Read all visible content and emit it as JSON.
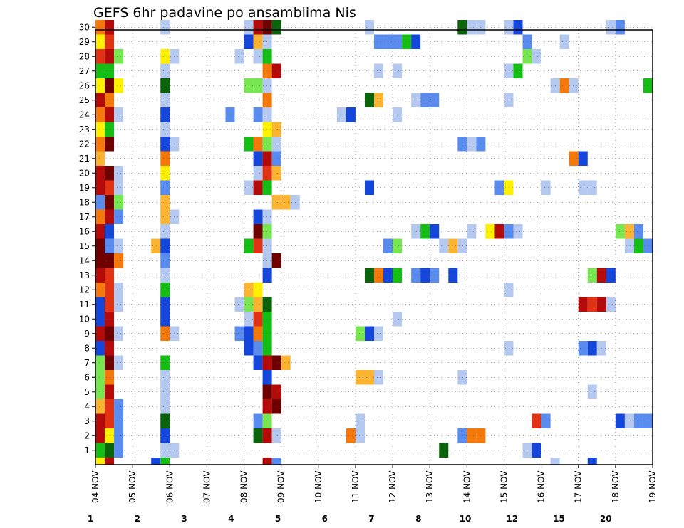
{
  "chart_data": {
    "type": "heatmap",
    "title": "GEFS 6hr padavine po ansamblima Nis",
    "xlabel": "",
    "ylabel": "",
    "x_tick_labels": [
      "04 NOV",
      "05 NOV",
      "06 NOV",
      "07 NOV",
      "08 NOV",
      "09 NOV",
      "10 NOV",
      "11 NOV",
      "12 NOV",
      "13 NOV",
      "14 NOV",
      "15 NOV",
      "16 NOV",
      "17 NOV",
      "18 NOV",
      "19 NOV"
    ],
    "members": [
      "1",
      "2",
      "3",
      "4",
      "5",
      "6",
      "7",
      "8",
      "9",
      "10",
      "11",
      "12",
      "13",
      "14",
      "15",
      "16",
      "17",
      "18",
      "19",
      "20",
      "21",
      "22",
      "23",
      "24",
      "25",
      "26",
      "27",
      "28",
      "29",
      "30"
    ],
    "x_unit": "6-hour step from 04 NOV 00Z",
    "steps_per_day": 4,
    "n_steps": 60,
    "grid": true,
    "legend_placement": "bottom",
    "legend_labels": [
      "1",
      "2",
      "3",
      "4",
      "5",
      "6",
      "7",
      "8",
      "10",
      "12",
      "15",
      "20"
    ],
    "legend_colors": [
      "#b4c8f0",
      "#5a8cf0",
      "#1446dc",
      "#78e650",
      "#14be14",
      "#0a640a",
      "#fff000",
      "#fab432",
      "#f5780a",
      "#e13214",
      "#b40a0a",
      "#6e0000"
    ],
    "member_rows": [
      {
        "member": "1",
        "cells": [
          [
            0,
            5
          ],
          [
            1,
            6
          ],
          [
            2,
            2
          ],
          [
            7,
            1
          ],
          [
            8,
            1
          ],
          [
            37,
            6
          ],
          [
            46,
            1
          ],
          [
            47,
            3
          ]
        ]
      },
      {
        "member": "2",
        "cells": [
          [
            0,
            11
          ],
          [
            1,
            7
          ],
          [
            2,
            2
          ],
          [
            7,
            3
          ],
          [
            17,
            6
          ],
          [
            18,
            11
          ],
          [
            19,
            1
          ],
          [
            27,
            9
          ],
          [
            28,
            1
          ],
          [
            39,
            2
          ],
          [
            40,
            9
          ],
          [
            41,
            9
          ]
        ]
      },
      {
        "member": "3",
        "cells": [
          [
            0,
            11
          ],
          [
            1,
            10
          ],
          [
            2,
            2
          ],
          [
            7,
            6
          ],
          [
            17,
            2
          ],
          [
            18,
            4
          ],
          [
            28,
            1
          ],
          [
            47,
            10
          ],
          [
            48,
            2
          ],
          [
            56,
            3
          ],
          [
            57,
            1
          ],
          [
            58,
            2
          ],
          [
            59,
            2
          ]
        ]
      },
      {
        "member": "4",
        "cells": [
          [
            0,
            8
          ],
          [
            1,
            10
          ],
          [
            2,
            2
          ],
          [
            7,
            1
          ],
          [
            18,
            11
          ],
          [
            19,
            12
          ]
        ]
      },
      {
        "member": "5",
        "cells": [
          [
            0,
            4
          ],
          [
            1,
            11
          ],
          [
            7,
            1
          ],
          [
            18,
            12
          ],
          [
            19,
            11
          ],
          [
            53,
            1
          ]
        ]
      },
      {
        "member": "6",
        "cells": [
          [
            0,
            4
          ],
          [
            1,
            9
          ],
          [
            7,
            1
          ],
          [
            18,
            3
          ],
          [
            28,
            8
          ],
          [
            29,
            8
          ],
          [
            30,
            1
          ],
          [
            39,
            1
          ]
        ]
      },
      {
        "member": "7",
        "cells": [
          [
            0,
            4
          ],
          [
            1,
            12
          ],
          [
            2,
            1
          ],
          [
            7,
            5
          ],
          [
            17,
            3
          ],
          [
            18,
            11
          ],
          [
            19,
            12
          ],
          [
            20,
            8
          ]
        ]
      },
      {
        "member": "8",
        "cells": [
          [
            0,
            3
          ],
          [
            1,
            11
          ],
          [
            16,
            3
          ],
          [
            17,
            2
          ],
          [
            18,
            5
          ],
          [
            44,
            1
          ],
          [
            52,
            2
          ],
          [
            53,
            3
          ],
          [
            54,
            1
          ]
        ]
      },
      {
        "member": "9",
        "cells": [
          [
            0,
            11
          ],
          [
            1,
            12
          ],
          [
            2,
            1
          ],
          [
            7,
            9
          ],
          [
            8,
            1
          ],
          [
            15,
            2
          ],
          [
            16,
            3
          ],
          [
            17,
            9
          ],
          [
            18,
            5
          ],
          [
            28,
            4
          ],
          [
            29,
            3
          ],
          [
            30,
            1
          ]
        ]
      },
      {
        "member": "10",
        "cells": [
          [
            0,
            3
          ],
          [
            1,
            11
          ],
          [
            7,
            3
          ],
          [
            16,
            1
          ],
          [
            17,
            10
          ],
          [
            18,
            5
          ],
          [
            32,
            1
          ]
        ]
      },
      {
        "member": "11",
        "cells": [
          [
            0,
            3
          ],
          [
            1,
            10
          ],
          [
            2,
            1
          ],
          [
            7,
            3
          ],
          [
            15,
            1
          ],
          [
            16,
            4
          ],
          [
            17,
            8
          ],
          [
            18,
            6
          ],
          [
            52,
            11
          ],
          [
            53,
            10
          ],
          [
            54,
            11
          ],
          [
            55,
            1
          ]
        ]
      },
      {
        "member": "12",
        "cells": [
          [
            0,
            9
          ],
          [
            1,
            10
          ],
          [
            2,
            1
          ],
          [
            7,
            5
          ],
          [
            16,
            8
          ],
          [
            17,
            7
          ],
          [
            44,
            1
          ]
        ]
      },
      {
        "member": "13",
        "cells": [
          [
            0,
            11
          ],
          [
            1,
            10
          ],
          [
            7,
            1
          ],
          [
            18,
            3
          ],
          [
            29,
            6
          ],
          [
            30,
            9
          ],
          [
            31,
            3
          ],
          [
            32,
            5
          ],
          [
            34,
            2
          ],
          [
            35,
            3
          ],
          [
            36,
            2
          ],
          [
            38,
            3
          ],
          [
            53,
            4
          ],
          [
            54,
            11
          ],
          [
            55,
            3
          ]
        ]
      },
      {
        "member": "14",
        "cells": [
          [
            0,
            12
          ],
          [
            1,
            12
          ],
          [
            2,
            9
          ],
          [
            7,
            2
          ],
          [
            18,
            1
          ],
          [
            19,
            12
          ]
        ]
      },
      {
        "member": "15",
        "cells": [
          [
            0,
            12
          ],
          [
            1,
            2
          ],
          [
            2,
            1
          ],
          [
            6,
            8
          ],
          [
            7,
            3
          ],
          [
            16,
            5
          ],
          [
            17,
            10
          ],
          [
            18,
            1
          ],
          [
            31,
            2
          ],
          [
            32,
            4
          ],
          [
            37,
            1
          ],
          [
            38,
            8
          ],
          [
            39,
            1
          ],
          [
            57,
            1
          ],
          [
            58,
            5
          ],
          [
            59,
            2
          ]
        ]
      },
      {
        "member": "16",
        "cells": [
          [
            0,
            11
          ],
          [
            1,
            3
          ],
          [
            7,
            1
          ],
          [
            17,
            12
          ],
          [
            18,
            4
          ],
          [
            34,
            1
          ],
          [
            35,
            5
          ],
          [
            36,
            3
          ],
          [
            40,
            1
          ],
          [
            42,
            7
          ],
          [
            43,
            11
          ],
          [
            44,
            2
          ],
          [
            45,
            1
          ],
          [
            56,
            4
          ],
          [
            57,
            8
          ],
          [
            58,
            2
          ]
        ]
      },
      {
        "member": "17",
        "cells": [
          [
            0,
            9
          ],
          [
            1,
            11
          ],
          [
            2,
            2
          ],
          [
            7,
            8
          ],
          [
            8,
            1
          ],
          [
            17,
            3
          ],
          [
            18,
            1
          ]
        ]
      },
      {
        "member": "18",
        "cells": [
          [
            0,
            2
          ],
          [
            1,
            12
          ],
          [
            2,
            4
          ],
          [
            7,
            8
          ],
          [
            19,
            8
          ],
          [
            20,
            8
          ],
          [
            21,
            1
          ]
        ]
      },
      {
        "member": "19",
        "cells": [
          [
            0,
            11
          ],
          [
            1,
            10
          ],
          [
            2,
            1
          ],
          [
            7,
            2
          ],
          [
            16,
            1
          ],
          [
            17,
            11
          ],
          [
            18,
            5
          ],
          [
            29,
            3
          ],
          [
            43,
            2
          ],
          [
            44,
            7
          ],
          [
            48,
            1
          ],
          [
            52,
            1
          ],
          [
            53,
            1
          ]
        ]
      },
      {
        "member": "20",
        "cells": [
          [
            0,
            11
          ],
          [
            1,
            12
          ],
          [
            2,
            1
          ],
          [
            7,
            7
          ],
          [
            17,
            1
          ],
          [
            18,
            10
          ],
          [
            19,
            8
          ]
        ]
      },
      {
        "member": "21",
        "cells": [
          [
            0,
            8
          ],
          [
            7,
            9
          ],
          [
            17,
            3
          ],
          [
            18,
            11
          ],
          [
            19,
            2
          ],
          [
            51,
            9
          ],
          [
            52,
            3
          ]
        ]
      },
      {
        "member": "22",
        "cells": [
          [
            0,
            9
          ],
          [
            1,
            12
          ],
          [
            7,
            3
          ],
          [
            8,
            1
          ],
          [
            16,
            5
          ],
          [
            17,
            9
          ],
          [
            18,
            4
          ],
          [
            19,
            1
          ],
          [
            39,
            2
          ],
          [
            40,
            1
          ],
          [
            41,
            2
          ]
        ]
      },
      {
        "member": "23",
        "cells": [
          [
            0,
            7
          ],
          [
            1,
            5
          ],
          [
            7,
            1
          ],
          [
            18,
            7
          ],
          [
            19,
            8
          ]
        ]
      },
      {
        "member": "24",
        "cells": [
          [
            0,
            9
          ],
          [
            1,
            11
          ],
          [
            2,
            1
          ],
          [
            7,
            3
          ],
          [
            14,
            2
          ],
          [
            17,
            2
          ],
          [
            18,
            1
          ],
          [
            26,
            1
          ],
          [
            27,
            3
          ],
          [
            32,
            1
          ]
        ]
      },
      {
        "member": "25",
        "cells": [
          [
            0,
            11
          ],
          [
            1,
            9
          ],
          [
            7,
            1
          ],
          [
            18,
            9
          ],
          [
            29,
            6
          ],
          [
            30,
            8
          ],
          [
            34,
            1
          ],
          [
            35,
            2
          ],
          [
            36,
            2
          ],
          [
            44,
            1
          ]
        ]
      },
      {
        "member": "26",
        "cells": [
          [
            0,
            7
          ],
          [
            1,
            12
          ],
          [
            2,
            7
          ],
          [
            7,
            6
          ],
          [
            16,
            4
          ],
          [
            17,
            4
          ],
          [
            18,
            1
          ],
          [
            49,
            1
          ],
          [
            50,
            9
          ],
          [
            51,
            1
          ],
          [
            59,
            5
          ]
        ]
      },
      {
        "member": "27",
        "cells": [
          [
            0,
            5
          ],
          [
            1,
            5
          ],
          [
            7,
            1
          ],
          [
            18,
            9
          ],
          [
            19,
            11
          ],
          [
            30,
            1
          ],
          [
            32,
            1
          ],
          [
            44,
            1
          ],
          [
            45,
            5
          ]
        ]
      },
      {
        "member": "28",
        "cells": [
          [
            0,
            10
          ],
          [
            1,
            11
          ],
          [
            2,
            4
          ],
          [
            7,
            7
          ],
          [
            8,
            1
          ],
          [
            15,
            1
          ],
          [
            17,
            1
          ],
          [
            18,
            5
          ],
          [
            46,
            4
          ],
          [
            47,
            1
          ]
        ]
      },
      {
        "member": "29",
        "cells": [
          [
            0,
            7
          ],
          [
            1,
            10
          ],
          [
            16,
            3
          ],
          [
            17,
            8
          ],
          [
            18,
            1
          ],
          [
            30,
            2
          ],
          [
            31,
            2
          ],
          [
            32,
            2
          ],
          [
            33,
            5
          ],
          [
            34,
            3
          ],
          [
            46,
            2
          ],
          [
            50,
            1
          ]
        ]
      },
      {
        "member": "30",
        "cells": [
          [
            0,
            9
          ],
          [
            1,
            11
          ],
          [
            7,
            1
          ],
          [
            16,
            1
          ],
          [
            17,
            11
          ],
          [
            18,
            12
          ],
          [
            19,
            6
          ],
          [
            29,
            1
          ],
          [
            39,
            6
          ],
          [
            40,
            1
          ],
          [
            41,
            1
          ],
          [
            44,
            1
          ],
          [
            45,
            3
          ],
          [
            55,
            1
          ],
          [
            56,
            2
          ]
        ]
      }
    ],
    "bottom_partial_cells": [
      [
        0,
        7
      ],
      [
        1,
        11
      ],
      [
        6,
        3
      ],
      [
        7,
        5
      ],
      [
        18,
        11
      ],
      [
        19,
        2
      ],
      [
        49,
        1
      ],
      [
        53,
        3
      ]
    ]
  }
}
